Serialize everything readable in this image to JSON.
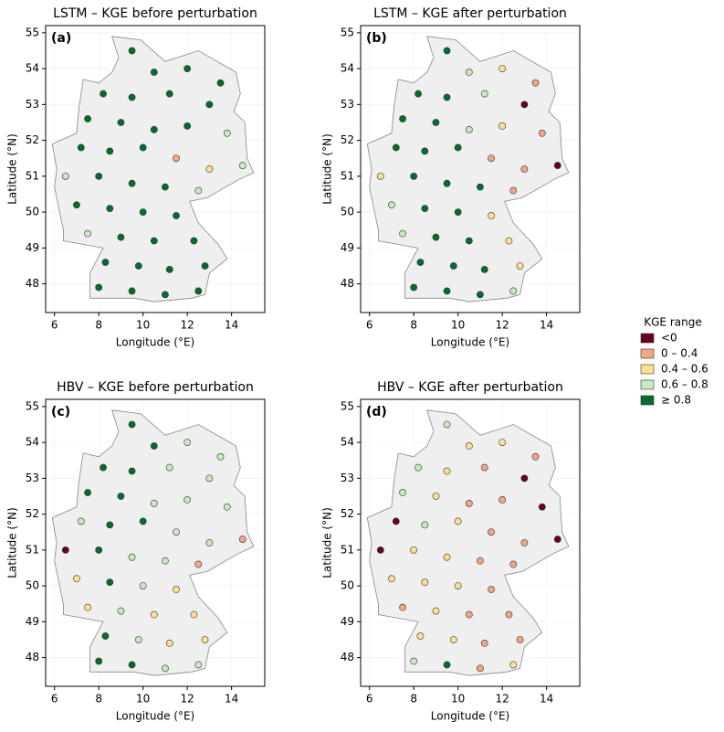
{
  "chart_data": [
    {
      "type": "scatter",
      "title": "LSTM – KGE before perturbation",
      "panel_label": "(a)",
      "x_label": "Longitude (°E)",
      "y_label": "Latitude (°N)",
      "legend_title": "KGE range",
      "xlim": [
        5.6,
        15.5
      ],
      "ylim": [
        47.2,
        55.2
      ],
      "xticks": [
        6,
        8,
        10,
        12,
        14
      ],
      "yticks": [
        48,
        49,
        50,
        51,
        52,
        53,
        54,
        55
      ],
      "grid": true,
      "series": [
        {
          "name": "<0",
          "color": "#67001f",
          "x": [],
          "y": []
        },
        {
          "name": "0 – 0.4",
          "color": "#f4a582",
          "x": [
            11.5
          ],
          "y": [
            51.5
          ]
        },
        {
          "name": "0.4 – 0.6",
          "color": "#fee090",
          "x": [
            13.0
          ],
          "y": [
            51.2
          ]
        },
        {
          "name": "0.6 – 0.8",
          "color": "#c7e9c0",
          "x": [
            13.8,
            14.5,
            6.5,
            12.5,
            7.5
          ],
          "y": [
            52.2,
            51.3,
            51.0,
            50.6,
            49.4
          ]
        },
        {
          "name": "≥ 0.8",
          "color": "#006d2c",
          "x": [
            9.5,
            10.5,
            12.0,
            13.5,
            8.2,
            9.5,
            11.2,
            13.0,
            7.5,
            9.0,
            10.5,
            12.0,
            7.2,
            8.5,
            10.0,
            8.0,
            9.5,
            11.0,
            7.0,
            8.5,
            10.0,
            11.5,
            9.0,
            10.5,
            12.3,
            8.3,
            9.8,
            11.2,
            12.8,
            8.0,
            9.5,
            11.0,
            12.5
          ],
          "y": [
            54.5,
            53.9,
            54.0,
            53.6,
            53.3,
            53.2,
            53.3,
            53.0,
            52.6,
            52.5,
            52.3,
            52.4,
            51.8,
            51.7,
            51.8,
            51.0,
            50.8,
            50.7,
            50.2,
            50.1,
            50.0,
            49.9,
            49.3,
            49.2,
            49.2,
            48.6,
            48.5,
            48.4,
            48.5,
            47.9,
            47.8,
            47.7,
            47.8
          ]
        }
      ]
    },
    {
      "type": "scatter",
      "title": "LSTM – KGE after perturbation",
      "panel_label": "(b)",
      "x_label": "Longitude (°E)",
      "y_label": "Latitude (°N)",
      "xlim": [
        5.6,
        15.5
      ],
      "ylim": [
        47.2,
        55.2
      ],
      "xticks": [
        6,
        8,
        10,
        12,
        14
      ],
      "yticks": [
        48,
        49,
        50,
        51,
        52,
        53,
        54,
        55
      ],
      "grid": true,
      "series": [
        {
          "name": "<0",
          "color": "#67001f",
          "x": [
            13.0,
            14.5
          ],
          "y": [
            53.0,
            51.3
          ]
        },
        {
          "name": "0 – 0.4",
          "color": "#f4a582",
          "x": [
            13.5,
            13.8,
            11.5,
            13.0,
            12.5
          ],
          "y": [
            53.6,
            52.2,
            51.5,
            51.2,
            50.6
          ]
        },
        {
          "name": "0.4 – 0.6",
          "color": "#fee090",
          "x": [
            12.0,
            12.0,
            6.5,
            11.5,
            12.3,
            12.8
          ],
          "y": [
            54.0,
            52.4,
            51.0,
            49.9,
            49.2,
            48.5
          ]
        },
        {
          "name": "0.6 – 0.8",
          "color": "#c7e9c0",
          "x": [
            10.5,
            11.2,
            10.5,
            7.0,
            7.5,
            12.5
          ],
          "y": [
            53.9,
            53.3,
            52.3,
            50.2,
            49.4,
            47.8
          ]
        },
        {
          "name": "≥ 0.8",
          "color": "#006d2c",
          "x": [
            9.5,
            8.2,
            9.5,
            7.5,
            9.0,
            7.2,
            8.5,
            10.0,
            8.0,
            9.5,
            11.0,
            8.5,
            10.0,
            9.0,
            10.5,
            8.3,
            9.8,
            11.2,
            8.0,
            9.5,
            11.0
          ],
          "y": [
            54.5,
            53.3,
            53.2,
            52.6,
            52.5,
            51.8,
            51.7,
            51.8,
            51.0,
            50.8,
            50.7,
            50.1,
            50.0,
            49.3,
            49.2,
            48.6,
            48.5,
            48.4,
            47.9,
            47.8,
            47.7
          ]
        }
      ]
    },
    {
      "type": "scatter",
      "title": "HBV – KGE before perturbation",
      "panel_label": "(c)",
      "x_label": "Longitude (°E)",
      "y_label": "Latitude (°N)",
      "xlim": [
        5.6,
        15.5
      ],
      "ylim": [
        47.2,
        55.2
      ],
      "xticks": [
        6,
        8,
        10,
        12,
        14
      ],
      "yticks": [
        48,
        49,
        50,
        51,
        52,
        53,
        54,
        55
      ],
      "grid": true,
      "series": [
        {
          "name": "<0",
          "color": "#67001f",
          "x": [
            6.5
          ],
          "y": [
            51.0
          ]
        },
        {
          "name": "0 – 0.4",
          "color": "#f4a582",
          "x": [
            14.5,
            12.5
          ],
          "y": [
            51.3,
            50.6
          ]
        },
        {
          "name": "0.4 – 0.6",
          "color": "#fee090",
          "x": [
            7.0,
            11.5,
            7.5,
            10.5,
            12.3,
            11.2,
            12.8
          ],
          "y": [
            50.2,
            49.9,
            49.4,
            49.2,
            49.2,
            48.4,
            48.5
          ]
        },
        {
          "name": "0.6 – 0.8",
          "color": "#c7e9c0",
          "x": [
            12.0,
            13.5,
            11.2,
            13.0,
            10.5,
            12.0,
            13.8,
            7.2,
            11.5,
            13.0,
            9.5,
            11.0,
            10.0,
            9.0,
            9.8,
            11.0,
            12.5
          ],
          "y": [
            54.0,
            53.6,
            53.3,
            53.0,
            52.3,
            52.4,
            52.2,
            51.8,
            51.5,
            51.2,
            50.8,
            50.7,
            50.0,
            49.3,
            48.5,
            47.7,
            47.8
          ]
        },
        {
          "name": "≥ 0.8",
          "color": "#006d2c",
          "x": [
            9.5,
            10.5,
            8.2,
            9.5,
            7.5,
            9.0,
            8.5,
            10.0,
            8.0,
            8.5,
            8.3,
            8.0,
            9.5
          ],
          "y": [
            54.5,
            53.9,
            53.3,
            53.2,
            52.6,
            52.5,
            51.7,
            51.8,
            51.0,
            50.1,
            48.6,
            47.9,
            47.8
          ]
        }
      ]
    },
    {
      "type": "scatter",
      "title": "HBV – KGE after perturbation",
      "panel_label": "(d)",
      "x_label": "Longitude (°E)",
      "y_label": "Latitude (°N)",
      "xlim": [
        5.6,
        15.5
      ],
      "ylim": [
        47.2,
        55.2
      ],
      "xticks": [
        6,
        8,
        10,
        12,
        14
      ],
      "yticks": [
        48,
        49,
        50,
        51,
        52,
        53,
        54,
        55
      ],
      "grid": true,
      "series": [
        {
          "name": "<0",
          "color": "#67001f",
          "x": [
            13.0,
            13.8,
            7.2,
            14.5,
            6.5
          ],
          "y": [
            53.0,
            52.2,
            51.8,
            51.3,
            51.0
          ]
        },
        {
          "name": "0 – 0.4",
          "color": "#f4a582",
          "x": [
            13.5,
            11.2,
            10.5,
            12.0,
            11.5,
            13.0,
            11.0,
            12.5,
            11.5,
            7.5,
            10.5,
            12.3,
            11.2,
            12.8,
            11.0
          ],
          "y": [
            53.6,
            53.3,
            52.3,
            52.4,
            51.5,
            51.2,
            50.7,
            50.6,
            49.9,
            49.4,
            49.2,
            49.2,
            48.4,
            48.5,
            47.7
          ]
        },
        {
          "name": "0.4 – 0.6",
          "color": "#fee090",
          "x": [
            10.5,
            12.0,
            9.5,
            9.0,
            10.0,
            8.0,
            9.5,
            7.0,
            8.5,
            10.0,
            9.0,
            8.3,
            9.8,
            12.5
          ],
          "y": [
            53.9,
            54.0,
            53.2,
            52.5,
            51.8,
            51.0,
            50.8,
            50.2,
            50.1,
            50.0,
            49.3,
            48.6,
            48.5,
            47.8
          ]
        },
        {
          "name": "0.6 – 0.8",
          "color": "#c7e9c0",
          "x": [
            9.5,
            8.2,
            7.5,
            8.5,
            8.0
          ],
          "y": [
            54.5,
            53.3,
            52.6,
            51.7,
            47.9
          ]
        },
        {
          "name": "≥ 0.8",
          "color": "#006d2c",
          "x": [
            9.5
          ],
          "y": [
            47.8
          ]
        }
      ]
    }
  ]
}
